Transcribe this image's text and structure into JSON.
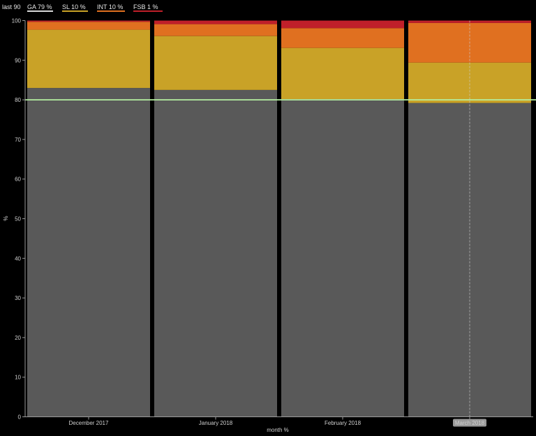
{
  "legend": {
    "period": "last 90",
    "items": [
      {
        "label": "GA  79 %",
        "color": "#d9d9d9"
      },
      {
        "label": "SL  10 %",
        "color": "#c9a227"
      },
      {
        "label": "INT  10 %",
        "color": "#e07020"
      },
      {
        "label": "FSB  1 %",
        "color": "#c0202a"
      }
    ]
  },
  "chart_data": {
    "type": "bar",
    "stacked": true,
    "categories": [
      "December 2017",
      "January 2018",
      "February 2018",
      "March 2018"
    ],
    "highlighted_category": "March 2018",
    "series": [
      {
        "name": "GA",
        "color": "#595959",
        "values": [
          83.0,
          82.5,
          80.2,
          79.2
        ]
      },
      {
        "name": "SL",
        "color": "#c9a227",
        "values": [
          14.7,
          13.6,
          12.9,
          10.2
        ]
      },
      {
        "name": "INT",
        "color": "#e07020",
        "values": [
          2.0,
          3.0,
          5.0,
          10.0
        ]
      },
      {
        "name": "FSB",
        "color": "#c0202a",
        "values": [
          0.3,
          0.9,
          1.9,
          0.6
        ]
      }
    ],
    "reference_line": {
      "value": 80,
      "color": "#b5f0a0"
    },
    "xlabel": "month %",
    "ylabel": "%",
    "ylim": [
      0,
      100
    ],
    "yticks": [
      0,
      10,
      20,
      30,
      40,
      50,
      60,
      70,
      80,
      90,
      100
    ],
    "grid": false,
    "legend_position": "top-left"
  }
}
